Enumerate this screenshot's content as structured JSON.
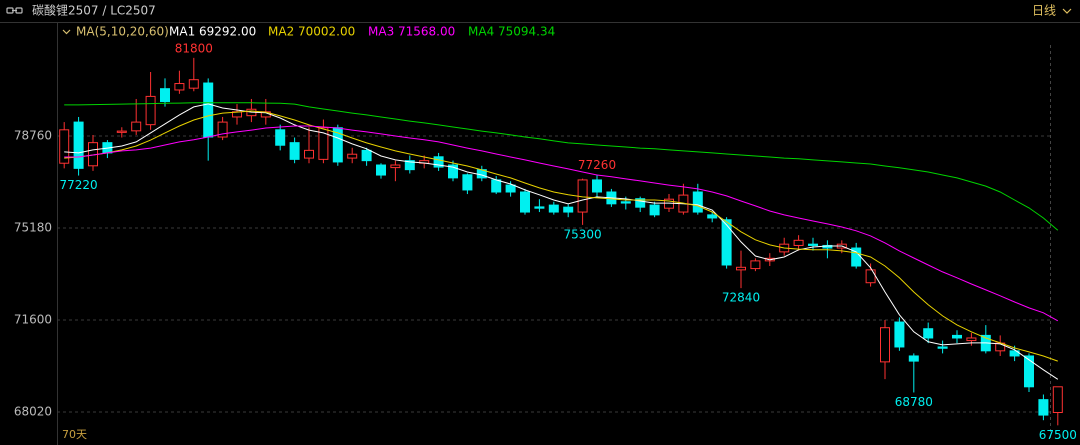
{
  "header": {
    "title": "碳酸锂2507 / LC2507",
    "period": "日线"
  },
  "chart_data": {
    "type": "candlestick",
    "indicator": "MA(5,10,20,60)",
    "span": "70天",
    "categories": [
      null,
      null,
      null,
      null,
      null,
      null,
      null,
      null,
      null,
      null,
      null,
      null,
      null,
      null,
      null,
      null,
      null,
      null,
      null,
      null,
      null,
      null,
      null,
      null,
      null,
      null,
      null,
      null,
      null,
      null,
      null,
      null,
      null,
      null,
      null,
      null,
      null,
      null,
      null,
      null,
      null,
      null,
      null,
      null,
      null,
      null,
      null,
      null,
      null,
      null,
      null,
      null,
      null,
      null,
      null,
      null,
      null,
      null,
      null,
      null,
      null,
      null,
      null,
      null,
      null,
      null,
      null,
      null,
      null,
      null
    ],
    "open": [
      77700,
      79300,
      77600,
      78500,
      78900,
      78960,
      79200,
      80600,
      80550,
      80620,
      80820,
      78720,
      79500,
      79550,
      79500,
      79000,
      78500,
      77900,
      77850,
      79080,
      77900,
      78200,
      77630,
      77530,
      77800,
      77700,
      77950,
      77630,
      77250,
      77450,
      77050,
      76850,
      76580,
      76000,
      76070,
      75990,
      75800,
      77050,
      76580,
      76200,
      76320,
      76070,
      75950,
      75800,
      76580,
      75690,
      75500,
      73550,
      73600,
      73900,
      74250,
      74500,
      74550,
      74500,
      74400,
      74400,
      73050,
      69970,
      71520,
      70200,
      71260,
      70550,
      71000,
      70800,
      71000,
      70400,
      70400,
      70200,
      68500,
      68000
    ],
    "high": [
      79300,
      79500,
      78800,
      78600,
      79100,
      80200,
      81250,
      81000,
      81300,
      81800,
      81000,
      79500,
      80000,
      80200,
      80200,
      79200,
      78700,
      79100,
      79400,
      79200,
      78300,
      78300,
      77700,
      77800,
      78000,
      78000,
      78100,
      77800,
      77300,
      77600,
      77200,
      77000,
      76700,
      76300,
      76200,
      76100,
      77100,
      77260,
      76700,
      76400,
      76400,
      76200,
      76500,
      76900,
      76900,
      75800,
      75600,
      74300,
      74000,
      74200,
      74800,
      74900,
      74800,
      74700,
      74700,
      74600,
      73800,
      71600,
      71700,
      70300,
      71500,
      70800,
      71200,
      71100,
      71400,
      71000,
      70600,
      70300,
      68700,
      69000
    ],
    "low": [
      77500,
      77220,
      77400,
      77900,
      78700,
      78800,
      79000,
      79900,
      80400,
      80500,
      77800,
      78600,
      79200,
      79300,
      79200,
      78200,
      77700,
      77700,
      77700,
      77600,
      77700,
      77600,
      77100,
      77000,
      77300,
      77500,
      77400,
      77000,
      76500,
      77000,
      76500,
      76400,
      75700,
      75800,
      75700,
      75600,
      75300,
      76400,
      76000,
      75900,
      75800,
      75600,
      75800,
      75700,
      75700,
      75400,
      73600,
      72840,
      73500,
      73700,
      74100,
      74300,
      74300,
      74000,
      74200,
      73600,
      72900,
      69300,
      70400,
      68780,
      70700,
      70300,
      70700,
      70600,
      70300,
      70200,
      70000,
      68800,
      67700,
      67500
    ],
    "close": [
      79000,
      77500,
      78500,
      78100,
      78950,
      79300,
      80300,
      80100,
      80800,
      80950,
      78720,
      79300,
      79700,
      79800,
      79700,
      78400,
      77850,
      78200,
      79080,
      77750,
      78050,
      77800,
      77240,
      77630,
      77450,
      77800,
      77550,
      77130,
      76660,
      77130,
      76580,
      76580,
      75800,
      75950,
      75800,
      75800,
      77050,
      76580,
      76120,
      76150,
      75990,
      75690,
      76300,
      76460,
      75800,
      75570,
      73740,
      73650,
      73900,
      74000,
      74550,
      74700,
      74500,
      74400,
      74550,
      73700,
      73550,
      71300,
      70550,
      70000,
      70900,
      70500,
      70900,
      70900,
      70400,
      70700,
      70200,
      69000,
      67900,
      69000
    ],
    "high_labels": [
      null,
      null,
      null,
      null,
      null,
      null,
      null,
      null,
      null,
      "81800",
      null,
      null,
      null,
      null,
      null,
      null,
      null,
      null,
      null,
      null,
      null,
      null,
      null,
      null,
      null,
      null,
      null,
      null,
      null,
      null,
      null,
      null,
      null,
      null,
      null,
      null,
      null,
      "77260",
      null,
      null,
      null,
      null,
      null,
      null,
      null,
      null,
      null,
      null,
      null,
      null,
      null,
      null,
      null,
      null,
      null,
      null,
      null,
      null,
      null,
      null,
      null,
      null,
      null,
      null,
      null,
      null,
      null,
      null,
      null,
      null
    ],
    "low_labels": [
      null,
      "77220",
      null,
      null,
      null,
      null,
      null,
      null,
      null,
      null,
      null,
      null,
      null,
      null,
      null,
      null,
      null,
      null,
      null,
      null,
      null,
      null,
      null,
      null,
      null,
      null,
      null,
      null,
      null,
      null,
      null,
      null,
      null,
      null,
      null,
      null,
      "75300",
      null,
      null,
      null,
      null,
      null,
      null,
      null,
      null,
      null,
      null,
      "72840",
      null,
      null,
      null,
      null,
      null,
      null,
      null,
      null,
      null,
      null,
      null,
      "68780",
      null,
      null,
      null,
      null,
      null,
      null,
      null,
      null,
      null,
      "67500"
    ],
    "up_color": "#ff3232",
    "down_color": "#00f0f0",
    "series": [
      {
        "name": "MA1 69292.00",
        "color": "#ffffff",
        "values": [
          78140,
          78100,
          78220,
          78290,
          78370,
          78530,
          78880,
          79230,
          79580,
          79890,
          80010,
          79850,
          79770,
          79690,
          79660,
          79460,
          79190,
          78990,
          78880,
          78680,
          78450,
          78260,
          77980,
          77830,
          77750,
          77710,
          77630,
          77550,
          77360,
          77240,
          77050,
          76890,
          76660,
          76470,
          76270,
          76120,
          76270,
          76390,
          76350,
          76310,
          76230,
          76150,
          76150,
          76120,
          76080,
          75880,
          75300,
          74640,
          74090,
          73940,
          74050,
          74330,
          74440,
          74480,
          74480,
          74250,
          73630,
          72690,
          71800,
          71140,
          70750,
          70630,
          70670,
          70710,
          70710,
          70670,
          70440,
          70050,
          69660,
          69292
        ]
      },
      {
        "name": "MA2 70002.00",
        "color": "#e8d200",
        "values": [
          77900,
          77940,
          78020,
          78100,
          78220,
          78370,
          78600,
          78880,
          79150,
          79380,
          79540,
          79650,
          79690,
          79730,
          79690,
          79540,
          79380,
          79190,
          79030,
          78880,
          78680,
          78490,
          78330,
          78180,
          78060,
          77940,
          77830,
          77710,
          77590,
          77440,
          77280,
          77130,
          76930,
          76740,
          76580,
          76470,
          76390,
          76350,
          76310,
          76270,
          76270,
          76270,
          76230,
          76150,
          76040,
          75800,
          75420,
          75030,
          74720,
          74520,
          74400,
          74360,
          74330,
          74330,
          74290,
          74210,
          74050,
          73700,
          73240,
          72690,
          72190,
          71760,
          71410,
          71140,
          70900,
          70710,
          70510,
          70360,
          70200,
          70002
        ]
      },
      {
        "name": "MA3 71568.00",
        "color": "#ff00ff",
        "values": [
          77940,
          77940,
          78020,
          78100,
          78180,
          78220,
          78290,
          78410,
          78530,
          78610,
          78720,
          78840,
          78920,
          78990,
          79070,
          79110,
          79150,
          79150,
          79110,
          79070,
          78990,
          78920,
          78840,
          78760,
          78680,
          78610,
          78530,
          78410,
          78290,
          78180,
          78060,
          77940,
          77830,
          77710,
          77590,
          77480,
          77360,
          77240,
          77170,
          77090,
          77010,
          76930,
          76850,
          76780,
          76700,
          76580,
          76430,
          76230,
          76040,
          75840,
          75690,
          75570,
          75450,
          75340,
          75220,
          75070,
          74870,
          74600,
          74290,
          74010,
          73740,
          73470,
          73240,
          73000,
          72770,
          72540,
          72300,
          72070,
          71880,
          71568
        ]
      },
      {
        "name": "MA4 75094.34",
        "color": "#00d400",
        "values": [
          79970,
          79970,
          79980,
          79990,
          80000,
          80010,
          80020,
          80030,
          80040,
          80050,
          80050,
          80050,
          80050,
          80050,
          80040,
          80030,
          80000,
          79890,
          79810,
          79730,
          79650,
          79580,
          79500,
          79420,
          79340,
          79270,
          79190,
          79110,
          79030,
          78950,
          78880,
          78800,
          78720,
          78650,
          78570,
          78490,
          78450,
          78410,
          78370,
          78330,
          78290,
          78260,
          78220,
          78180,
          78140,
          78100,
          78060,
          78020,
          77980,
          77940,
          77900,
          77870,
          77830,
          77790,
          77750,
          77710,
          77670,
          77590,
          77520,
          77440,
          77360,
          77240,
          77130,
          76970,
          76810,
          76580,
          76270,
          75960,
          75570,
          75094.34
        ]
      }
    ],
    "ylim": [
      66930,
      82300
    ],
    "yticks": [
      68020,
      71600,
      75180,
      78760
    ],
    "grid": true
  }
}
